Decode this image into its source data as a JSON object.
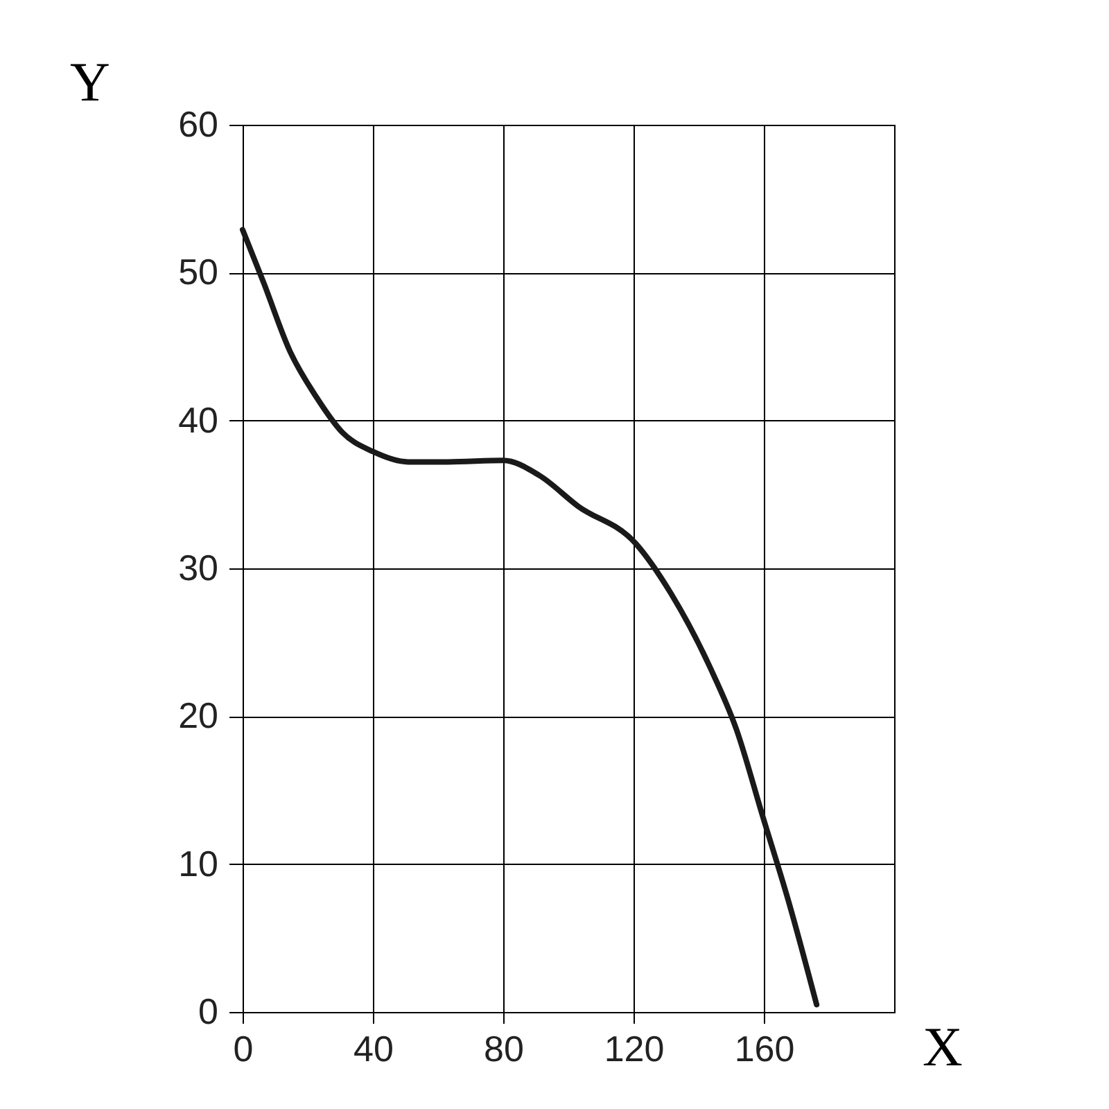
{
  "chart_data": {
    "type": "line",
    "xlabel": "X",
    "ylabel": "Y",
    "xlim": [
      0,
      200
    ],
    "xticks": [
      0,
      40,
      80,
      120,
      160
    ],
    "ylim": [
      0,
      60
    ],
    "yticks": [
      0,
      10,
      20,
      30,
      40,
      50,
      60
    ],
    "grid": true,
    "marker": "none",
    "line_style": "solid",
    "series": [
      {
        "color": "#1a1a1a",
        "x": [
          0,
          6.5,
          14.5,
          22.6,
          30.6,
          40,
          50.8,
          63,
          80,
          91,
          103,
          120.6,
          131.5,
          143.5,
          151.6,
          159.7,
          167.7,
          176.2
        ],
        "values": [
          52.9,
          49.3,
          44.7,
          41.6,
          39.2,
          37.9,
          37.2,
          37.2,
          37.3,
          36.3,
          34.2,
          31.7,
          28.3,
          23.3,
          19.1,
          13.2,
          7.4,
          0.5
        ]
      }
    ]
  }
}
